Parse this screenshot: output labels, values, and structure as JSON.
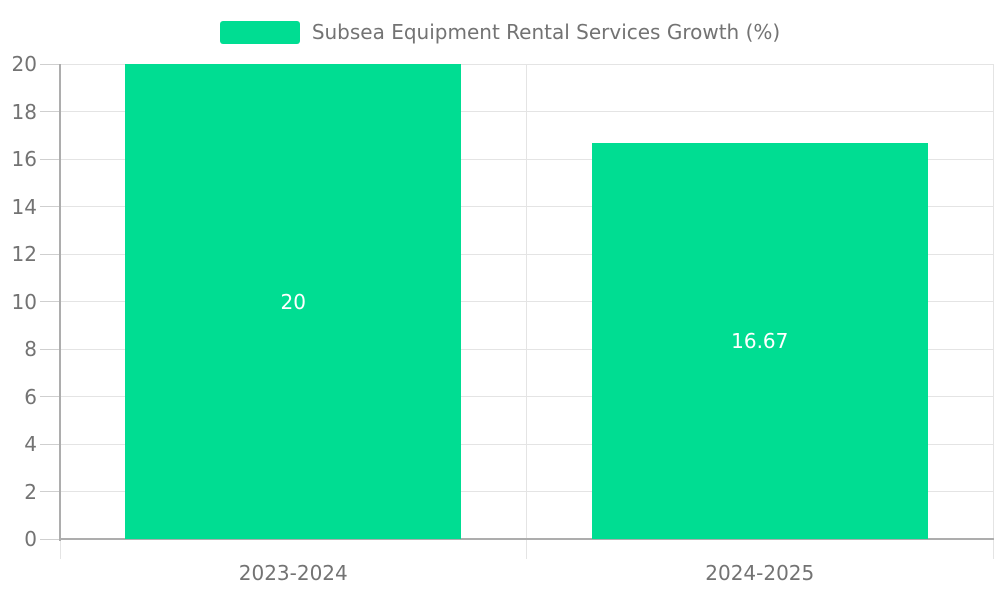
{
  "chart": {
    "legend_label": "Subsea Equipment Rental Services Growth (%)",
    "colors": {
      "bar": "#00DD92",
      "grid": "#E4E4E4",
      "axis": "#ADADAD",
      "tick": "#CFCFCF",
      "text": "#737373",
      "value_text": "#FFFFFF",
      "background": "#FFFFFF"
    }
  },
  "chart_data": {
    "type": "bar",
    "title": "Subsea Equipment Rental Services Growth (%)",
    "categories": [
      "2023-2024",
      "2024-2025"
    ],
    "values": [
      20,
      16.67
    ],
    "value_labels": [
      "20",
      "16.67"
    ],
    "xlabel": "",
    "ylabel": "",
    "ylim": [
      0,
      20
    ],
    "ytick_step": 2,
    "ytick_labels": [
      "0",
      "2",
      "4",
      "6",
      "8",
      "10",
      "12",
      "14",
      "16",
      "18",
      "20"
    ],
    "grid": true,
    "legend_position": "top-center",
    "value_label_position": "center-of-bar"
  }
}
